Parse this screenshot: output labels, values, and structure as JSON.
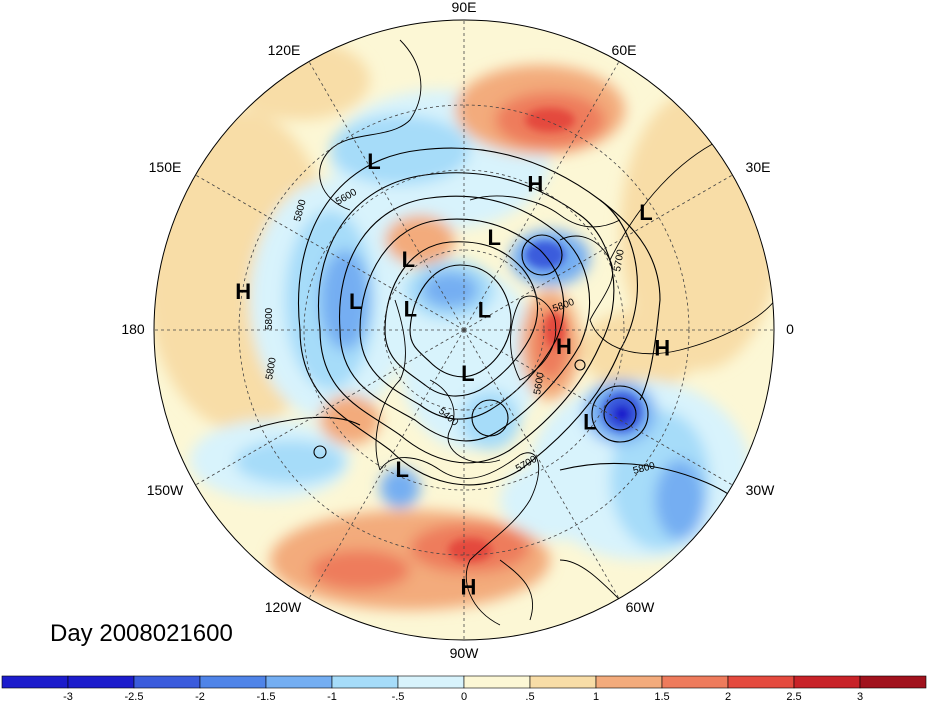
{
  "date_label": "Day 2008021600",
  "longitude_labels": {
    "lon_90e": "90E",
    "lon_60e": "60E",
    "lon_30e": "30E",
    "lon_0": "0",
    "lon_30w": "30W",
    "lon_60w": "60W",
    "lon_90w": "90W",
    "lon_120w": "120W",
    "lon_150w": "150W",
    "lon_180": "180",
    "lon_150e": "150E",
    "lon_120e": "120E"
  },
  "pressure_centers": [
    {
      "type": "L",
      "lon": 118,
      "lat": 37
    },
    {
      "type": "H",
      "lon": 64,
      "lat": 45
    },
    {
      "type": "L",
      "lon": 33,
      "lat": 30
    },
    {
      "type": "H",
      "lon": 170,
      "lat": 28
    },
    {
      "type": "L",
      "lon": 72,
      "lat": 63
    },
    {
      "type": "L",
      "lon": 128,
      "lat": 65
    },
    {
      "type": "L",
      "lon": 165,
      "lat": 59
    },
    {
      "type": "L",
      "lon": 158,
      "lat": 74
    },
    {
      "type": "L",
      "lon": 45,
      "lat": 82
    },
    {
      "type": "H",
      "lon": -9,
      "lat": 62
    },
    {
      "type": "H",
      "lon": -5,
      "lat": 35
    },
    {
      "type": "L",
      "lon": -36,
      "lat": 47
    },
    {
      "type": "L",
      "lon": -85,
      "lat": 78
    },
    {
      "type": "L",
      "lon": -114,
      "lat": 48
    },
    {
      "type": "H",
      "lon": -89,
      "lat": 19
    }
  ],
  "contour_labels": [
    "5800",
    "5600",
    "5700",
    "5800",
    "5800",
    "5800",
    "5600",
    "5400",
    "5700",
    "5800"
  ],
  "anomaly_colors": {
    "neg3": "#1c1ccc",
    "neg25": "#3a5bdc",
    "neg2": "#4f84e8",
    "neg15": "#74aef2",
    "neg1": "#a6dcf9",
    "neg05": "#d8f3fc",
    "pos0": "#fcf7d5",
    "pos05": "#f8dda7",
    "pos1": "#f3ab7c",
    "pos15": "#ee7b5c",
    "pos2": "#e44a3e",
    "pos25": "#c82228",
    "pos3": "#a1121d"
  },
  "colorbar": {
    "colors": [
      "#1c1ccc",
      "#3a5bdc",
      "#4f84e8",
      "#74aef2",
      "#a6dcf9",
      "#d8f3fc",
      "#fcf7d5",
      "#f8dda7",
      "#f3ab7c",
      "#ee7b5c",
      "#e44a3e",
      "#c82228",
      "#a1121d"
    ],
    "tick_labels": [
      "-3",
      "-2.5",
      "-2",
      "-1.5",
      "-1",
      "-.5",
      "0",
      ".5",
      "1",
      "1.5",
      "2",
      "2.5",
      "3"
    ]
  }
}
